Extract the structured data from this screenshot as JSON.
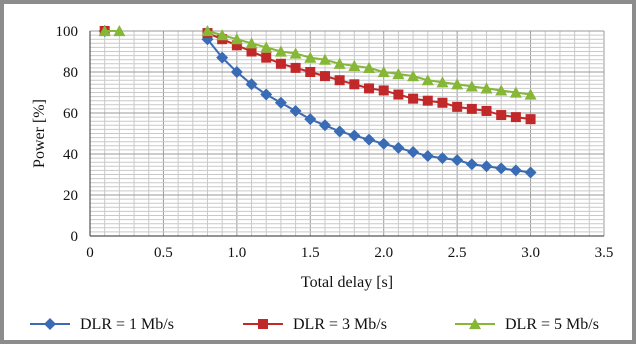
{
  "chart_data": {
    "type": "scatter",
    "xlabel": "Total delay [s]",
    "ylabel": "Power [%]",
    "xlim": [
      0,
      3.5
    ],
    "ylim": [
      0,
      100
    ],
    "x_ticks": [
      "0",
      "0.5",
      "1.0",
      "1.5",
      "2.0",
      "2.5",
      "3.0",
      "3.5"
    ],
    "y_ticks": [
      "0",
      "20",
      "40",
      "60",
      "80",
      "100"
    ],
    "grid": true,
    "legend_position": "bottom",
    "series": [
      {
        "name": "DLR = 1 Mb/s",
        "color": "#3a6cb5",
        "marker": "diamond",
        "x": [
          0.1,
          0.8,
          0.9,
          1.0,
          1.1,
          1.2,
          1.3,
          1.4,
          1.5,
          1.6,
          1.7,
          1.8,
          1.9,
          2.0,
          2.1,
          2.2,
          2.3,
          2.4,
          2.5,
          2.6,
          2.7,
          2.8,
          2.9,
          3.0
        ],
        "y": [
          100,
          96,
          87,
          80,
          74,
          69,
          65,
          61,
          57,
          54,
          51,
          49,
          47,
          45,
          43,
          41,
          39,
          38,
          37,
          35,
          34,
          33,
          32,
          31
        ]
      },
      {
        "name": "DLR = 3 Mb/s",
        "color": "#c0282a",
        "marker": "square",
        "x": [
          0.1,
          0.8,
          0.9,
          1.0,
          1.1,
          1.2,
          1.3,
          1.4,
          1.5,
          1.6,
          1.7,
          1.8,
          1.9,
          2.0,
          2.1,
          2.2,
          2.3,
          2.4,
          2.5,
          2.6,
          2.7,
          2.8,
          2.9,
          3.0
        ],
        "y": [
          100,
          99,
          96,
          93,
          90,
          87,
          84,
          82,
          80,
          78,
          76,
          74,
          72,
          71,
          69,
          67,
          66,
          65,
          63,
          62,
          61,
          59,
          58,
          57
        ]
      },
      {
        "name": "DLR = 5 Mb/s",
        "color": "#86b737",
        "marker": "triangle",
        "x": [
          0.1,
          0.2,
          0.8,
          0.9,
          1.0,
          1.1,
          1.2,
          1.3,
          1.4,
          1.5,
          1.6,
          1.7,
          1.8,
          1.9,
          2.0,
          2.1,
          2.2,
          2.3,
          2.4,
          2.5,
          2.6,
          2.7,
          2.8,
          2.9,
          3.0
        ],
        "y": [
          100,
          100,
          100,
          98,
          96,
          94,
          92,
          90,
          89,
          87,
          86,
          84,
          83,
          82,
          80,
          79,
          78,
          76,
          75,
          74,
          73,
          72,
          71,
          70,
          69
        ]
      }
    ]
  }
}
